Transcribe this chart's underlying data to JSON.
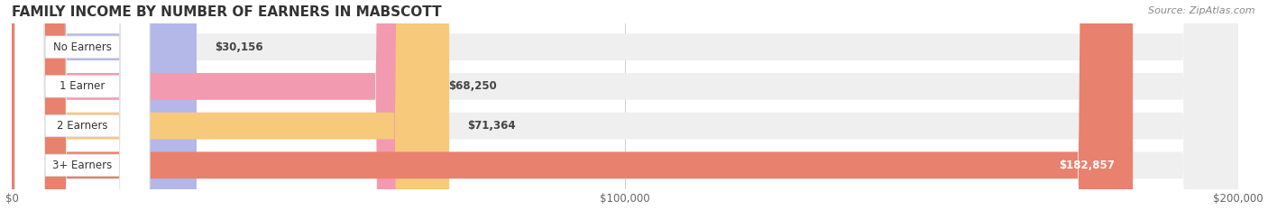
{
  "title": "FAMILY INCOME BY NUMBER OF EARNERS IN MABSCOTT",
  "source": "Source: ZipAtlas.com",
  "categories": [
    "No Earners",
    "1 Earner",
    "2 Earners",
    "3+ Earners"
  ],
  "values": [
    30156,
    68250,
    71364,
    182857
  ],
  "bar_colors": [
    "#b3b8e8",
    "#f29ab0",
    "#f7c97a",
    "#e8816e"
  ],
  "bar_bg_color": "#efefef",
  "value_labels": [
    "$30,156",
    "$68,250",
    "$71,364",
    "$182,857"
  ],
  "xlim": [
    0,
    200000
  ],
  "xticks": [
    0,
    100000,
    200000
  ],
  "xticklabels": [
    "$0",
    "$100,000",
    "$200,000"
  ],
  "background_color": "#ffffff",
  "title_fontsize": 11,
  "bar_height": 0.68,
  "figsize": [
    14.06,
    2.33
  ],
  "label_inside_threshold": 150000
}
